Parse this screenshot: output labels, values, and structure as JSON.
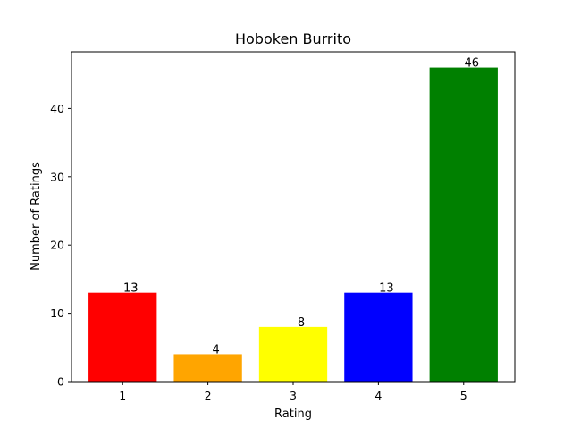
{
  "chart_data": {
    "type": "bar",
    "title": "Hoboken Burrito",
    "xlabel": "Rating",
    "ylabel": "Number of Ratings",
    "categories": [
      "1",
      "2",
      "3",
      "4",
      "5"
    ],
    "values": [
      13,
      4,
      8,
      13,
      46
    ],
    "colors": [
      "#ff0000",
      "#ffa500",
      "#ffff00",
      "#0000ff",
      "#008000"
    ],
    "data_labels": [
      "13",
      "4",
      "8",
      "13",
      "46"
    ],
    "ylim": [
      0,
      48.3
    ],
    "yticks": [
      0,
      10,
      20,
      30,
      40
    ],
    "grid": false,
    "legend": "none"
  }
}
